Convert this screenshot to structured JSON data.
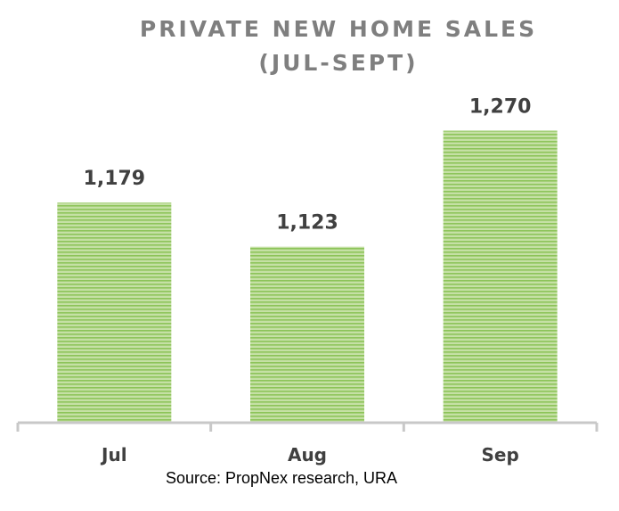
{
  "chart_data": {
    "type": "bar",
    "title": "PRIVATE NEW HOME SALES",
    "subtitle": "(JUL-SEPT)",
    "categories": [
      "Jul",
      "Aug",
      "Sep"
    ],
    "values": [
      1179,
      1123,
      1270
    ],
    "value_labels": [
      "1,179",
      "1,123",
      "1,270"
    ],
    "xlabel": "",
    "ylabel": "",
    "ylim": [
      900,
      1300
    ],
    "grid": false,
    "legend": "none",
    "source": "Source: PropNex research, URA"
  },
  "colors": {
    "bar_fill": "#c5e0a5",
    "bar_stripe": "#8dc45a",
    "axis": "#c8c8c8",
    "text": "#404040",
    "title": "#7f7f7f"
  }
}
